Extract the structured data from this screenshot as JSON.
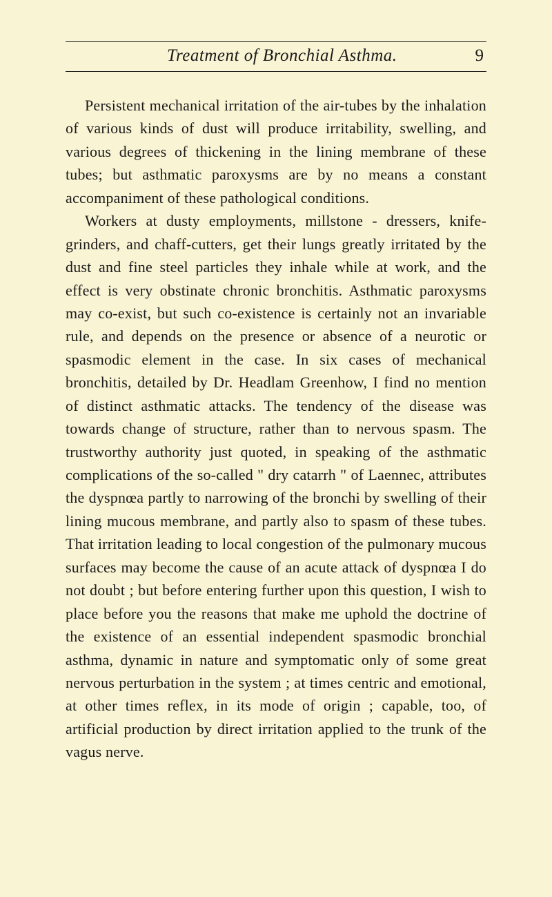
{
  "header": {
    "title": "Treatment of Bronchial Asthma.",
    "page_number": "9"
  },
  "body": {
    "paragraph1": "Persistent mechanical irritation of the air-tubes by the inhalation of various kinds of dust will produce irritability, swelling, and various degrees of thickening in the lining membrane of these tubes; but asthmatic paroxysms are by no means a constant accompaniment of these pathological conditions.",
    "paragraph2": "Workers at dusty employments, millstone - dressers, knife-grinders, and chaff-cutters, get their lungs greatly irritated by the dust and fine steel particles they inhale while at work, and the effect is very obstinate chronic bronchitis. Asthmatic paroxysms may co-exist, but such co-existence is certainly not an invariable rule, and depends on the presence or absence of a neurotic or spasmodic element in the case. In six cases of mechanical bronchitis, detailed by Dr. Headlam Greenhow, I find no mention of distinct asthmatic attacks. The tendency of the disease was towards change of structure, rather than to nervous spasm. The trustworthy authority just quoted, in speaking of the asthmatic complications of the so-called \" dry catarrh \" of Laennec, attributes the dyspnœa partly to narrowing of the bronchi by swelling of their lining mucous membrane, and partly also to spasm of these tubes. That irritation leading to local congestion of the pulmonary mucous surfaces may become the cause of an acute attack of dyspnœa I do not doubt ; but before entering further upon this question, I wish to place before you the reasons that make me uphold the doctrine of the existence of an essential independent spasmodic bronchial asthma, dynamic in nature and symptomatic only of some great nervous perturbation in the system ; at times centric and emotional, at other times reflex, in its mode of origin ; capable, too, of artificial production by direct irritation applied to the trunk of the vagus nerve."
  }
}
